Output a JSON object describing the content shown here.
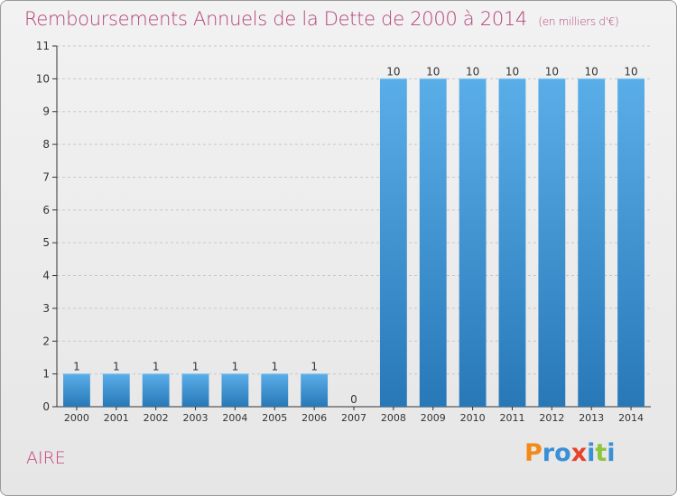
{
  "page": {
    "title": "Remboursements Annuels de la Dette de 2000 à 2014",
    "unit_note": "(en milliers d'€)",
    "commune": "AIRE",
    "logo_text": "Proxiti",
    "logo_letters": [
      {
        "ch": "P",
        "color": "#f28a1a"
      },
      {
        "ch": "r",
        "color": "#3a8fd6"
      },
      {
        "ch": "o",
        "color": "#3a8fd6"
      },
      {
        "ch": "x",
        "color": "#e8412b"
      },
      {
        "ch": "i",
        "color": "#3a8fd6"
      },
      {
        "ch": "t",
        "color": "#8cc63e"
      },
      {
        "ch": "i",
        "color": "#3a8fd6"
      }
    ]
  },
  "colors": {
    "title": "#b4437a",
    "bar_top": "#5aaee8",
    "bar_bottom": "#2878b8",
    "axis": "#333333",
    "grid": "#c8c8c8",
    "label": "#333333"
  },
  "chart_data": {
    "type": "bar",
    "categories": [
      "2000",
      "2001",
      "2002",
      "2003",
      "2004",
      "2005",
      "2006",
      "2007",
      "2008",
      "2009",
      "2010",
      "2011",
      "2012",
      "2013",
      "2014"
    ],
    "values": [
      1,
      1,
      1,
      1,
      1,
      1,
      1,
      0,
      10,
      10,
      10,
      10,
      10,
      10,
      10
    ],
    "data_labels": [
      "1",
      "1",
      "1",
      "1",
      "1",
      "1",
      "1",
      "0",
      "10",
      "10",
      "10",
      "10",
      "10",
      "10",
      "10"
    ],
    "yticks": [
      0,
      1,
      2,
      3,
      4,
      5,
      6,
      7,
      8,
      9,
      10,
      11
    ],
    "ylim": [
      0,
      11
    ],
    "title": "Remboursements Annuels de la Dette de 2000 à 2014",
    "xlabel": "",
    "ylabel": "",
    "grid": true,
    "legend": "none"
  }
}
